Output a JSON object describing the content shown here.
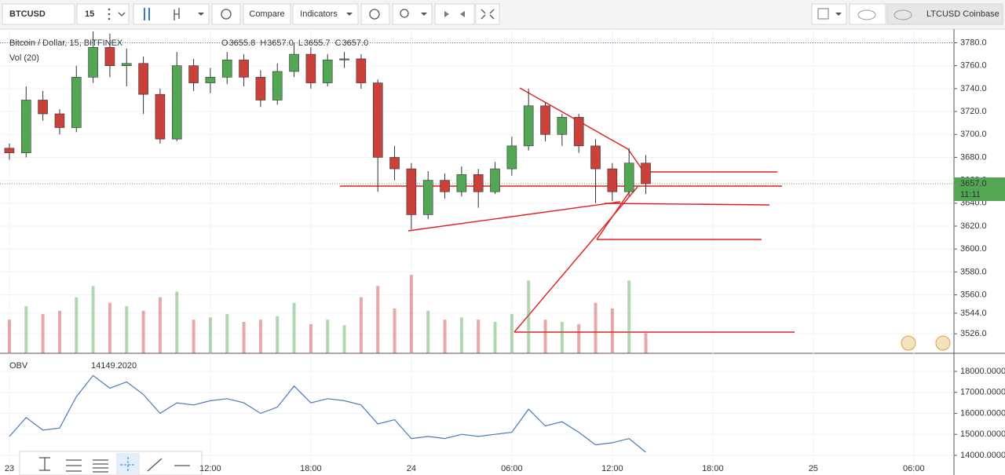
{
  "toolbar": {
    "symbol": "BTCUSD",
    "interval": "15",
    "compare": "Compare",
    "indicators": "Indicators",
    "watch_symbol": "LTCUSD Coinbase"
  },
  "price_chart": {
    "title": "Bitcoin / Dollar, 15, BITFINEX",
    "legend_ohlc": [
      "O",
      "3655.8",
      "H",
      "3657.0",
      "L",
      "3655.7",
      "C",
      "3657.0"
    ],
    "volume_label": "Vol (20)",
    "last_price": {
      "value": 3657,
      "label": "3657.0"
    },
    "countdown": "11:11",
    "up_color": "#53a653",
    "down_color": "#c9413a",
    "ylim": [
      3509,
      3792
    ],
    "yticks": [
      {
        "value": 3780,
        "label": "3780.0"
      },
      {
        "value": 3760,
        "label": "3760.0"
      },
      {
        "value": 3740,
        "label": "3740.0"
      },
      {
        "value": 3720,
        "label": "3720.0"
      },
      {
        "value": 3700,
        "label": "3700.0"
      },
      {
        "value": 3680,
        "label": "3680.0"
      },
      {
        "value": 3660,
        "label": "3660.0"
      },
      {
        "value": 3640,
        "label": "3640.0"
      },
      {
        "value": 3620,
        "label": "3620.0"
      },
      {
        "value": 3600,
        "label": "3600.0"
      },
      {
        "value": 3580,
        "label": "3580.0"
      },
      {
        "value": 3560,
        "label": "3560.0"
      },
      {
        "value": 3544,
        "label": "3544.0"
      },
      {
        "value": 3526,
        "label": "3526.0"
      }
    ],
    "xlim": [
      -0.56,
      56.4
    ],
    "xticks": [
      {
        "value": 0,
        "label": "23"
      },
      {
        "value": 12,
        "label": "12:00"
      },
      {
        "value": 18,
        "label": "18:00"
      },
      {
        "value": 24,
        "label": "24"
      },
      {
        "value": 30,
        "label": "06:00"
      },
      {
        "value": 36,
        "label": "12:00"
      },
      {
        "value": 42,
        "label": "18:00"
      },
      {
        "value": 48,
        "label": "25"
      },
      {
        "value": 54,
        "label": "06:00"
      }
    ],
    "candles": [
      [
        0,
        3688,
        3692,
        3678,
        3684
      ],
      [
        1,
        3684,
        3742,
        3680,
        3730
      ],
      [
        2,
        3730,
        3738,
        3712,
        3718
      ],
      [
        3,
        3718,
        3722,
        3700,
        3706
      ],
      [
        4,
        3706,
        3760,
        3702,
        3750
      ],
      [
        5,
        3750,
        3790,
        3745,
        3776
      ],
      [
        6,
        3776,
        3788,
        3750,
        3760
      ],
      [
        7,
        3760,
        3775,
        3742,
        3762
      ],
      [
        8,
        3762,
        3768,
        3718,
        3735
      ],
      [
        9,
        3735,
        3740,
        3692,
        3696
      ],
      [
        10,
        3696,
        3772,
        3694,
        3760
      ],
      [
        11,
        3760,
        3766,
        3738,
        3745
      ],
      [
        12,
        3745,
        3758,
        3736,
        3750
      ],
      [
        13,
        3750,
        3772,
        3744,
        3765
      ],
      [
        14,
        3765,
        3770,
        3742,
        3750
      ],
      [
        15,
        3750,
        3756,
        3724,
        3730
      ],
      [
        16,
        3730,
        3762,
        3726,
        3755
      ],
      [
        17,
        3755,
        3780,
        3750,
        3770
      ],
      [
        18,
        3770,
        3776,
        3740,
        3745
      ],
      [
        19,
        3745,
        3770,
        3742,
        3765
      ],
      [
        20,
        3765,
        3772,
        3758,
        3766
      ],
      [
        21,
        3766,
        3770,
        3740,
        3745
      ],
      [
        22,
        3745,
        3748,
        3650,
        3680
      ],
      [
        23,
        3680,
        3690,
        3660,
        3670
      ],
      [
        24,
        3670,
        3675,
        3617,
        3630
      ],
      [
        25,
        3630,
        3668,
        3626,
        3660
      ],
      [
        26,
        3660,
        3666,
        3644,
        3650
      ],
      [
        27,
        3650,
        3672,
        3646,
        3665
      ],
      [
        28,
        3665,
        3670,
        3636,
        3650
      ],
      [
        29,
        3650,
        3676,
        3648,
        3670
      ],
      [
        30,
        3670,
        3698,
        3664,
        3690
      ],
      [
        31,
        3690,
        3740,
        3686,
        3725
      ],
      [
        32,
        3725,
        3728,
        3694,
        3700
      ],
      [
        33,
        3700,
        3718,
        3690,
        3715
      ],
      [
        34,
        3715,
        3718,
        3684,
        3690
      ],
      [
        35,
        3690,
        3696,
        3640,
        3670
      ],
      [
        36,
        3670,
        3675,
        3642,
        3650
      ],
      [
        37,
        3650,
        3688,
        3646,
        3675
      ],
      [
        38,
        3675,
        3682,
        3648,
        3657
      ]
    ],
    "volume": [
      300,
      420,
      350,
      380,
      500,
      600,
      450,
      420,
      380,
      500,
      550,
      300,
      320,
      350,
      280,
      300,
      330,
      450,
      260,
      300,
      250,
      500,
      600,
      400,
      700,
      380,
      300,
      320,
      300,
      280,
      350,
      650,
      300,
      280,
      260,
      450,
      400,
      650,
      180
    ]
  },
  "obv_chart": {
    "label": "OBV",
    "value_label": "14149.2020",
    "color": "#4a7ab8",
    "ylim": [
      13065,
      18785
    ],
    "yticks": [
      {
        "value": 18000,
        "label": "18000.0000"
      },
      {
        "value": 17000,
        "label": "17000.0000"
      },
      {
        "value": 16000,
        "label": "16000.0000"
      },
      {
        "value": 15000,
        "label": "15000.0000"
      },
      {
        "value": 14000,
        "label": "14000.0000"
      }
    ],
    "x": [
      0,
      1,
      2,
      3,
      4,
      5,
      6,
      7,
      8,
      9,
      10,
      11,
      12,
      13,
      14,
      15,
      16,
      17,
      18,
      19,
      20,
      21,
      22,
      23,
      24,
      25,
      26,
      27,
      28,
      29,
      30,
      31,
      32,
      33,
      34,
      35,
      36,
      37,
      38
    ],
    "values": [
      14900,
      15800,
      15200,
      15300,
      16800,
      17800,
      17200,
      17500,
      16900,
      16000,
      16500,
      16400,
      16600,
      16700,
      16500,
      16000,
      16300,
      17300,
      16500,
      16700,
      16600,
      16400,
      15500,
      15700,
      14800,
      14900,
      14800,
      15000,
      14900,
      15000,
      15100,
      16200,
      15400,
      15600,
      15100,
      14500,
      14600,
      14800,
      14149.202
    ]
  }
}
